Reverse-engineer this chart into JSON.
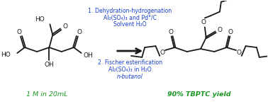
{
  "bg_color": "#ffffff",
  "step1_line1": "1. Dehydration-hydrogenation",
  "step1_line2": "Al₂(SO₄)₃ and Pd°/C",
  "step1_line3": "Solvent H₂O",
  "step2_line1": "2. Fischer esterification",
  "step2_line2": "Al₂(SO₄)₃ in H₂O",
  "step2_line3": "n-butanol",
  "label_left": "1 M in 20mL",
  "label_right": "90% TBPTC yield",
  "text_color_blue": "#1a3fcc",
  "text_color_green": "#1a9922",
  "text_color_black": "#1a1a1a",
  "fig_width": 3.78,
  "fig_height": 1.47,
  "dpi": 100
}
